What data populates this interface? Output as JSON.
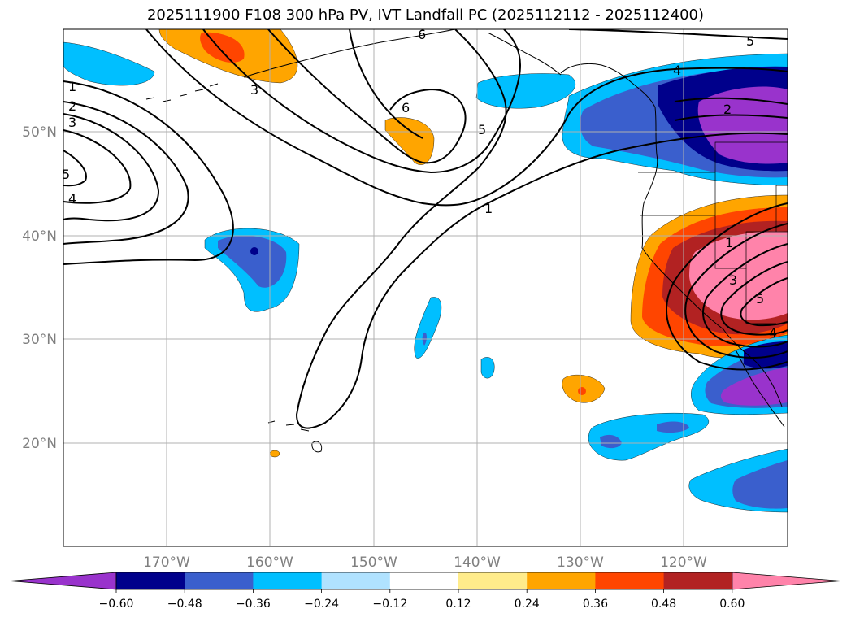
{
  "title": "2025111900 F108 300 hPa PV, IVT Landfall PC (2025112112 - 2025112400)",
  "lat_labels": [
    "50°N",
    "40°N",
    "30°N",
    "20°N"
  ],
  "lon_labels": [
    "170°W",
    "160°W",
    "150°W",
    "140°W",
    "130°W",
    "120°W"
  ],
  "colorbar": {
    "colors": [
      "#9933cc",
      "#00008b",
      "#3a5fcd",
      "#00bfff",
      "#b0e2ff",
      "#ffffff",
      "#ffec8b",
      "#ffa500",
      "#ff4500",
      "#b22222",
      "#ff83aa"
    ],
    "tick_labels": [
      "−0.60",
      "−0.48",
      "−0.36",
      "−0.24",
      "−0.12",
      "0.12",
      "0.24",
      "0.36",
      "0.48",
      "0.60"
    ]
  },
  "contour_labels": [
    "1",
    "2",
    "3",
    "5",
    "4",
    "3",
    "6",
    "6",
    "5",
    "1",
    "5",
    "4",
    "2",
    "1",
    "3",
    "5",
    "4"
  ],
  "colors": {
    "gridline": "#b0b0b0",
    "contour": "#000000",
    "coast": "#000000"
  }
}
